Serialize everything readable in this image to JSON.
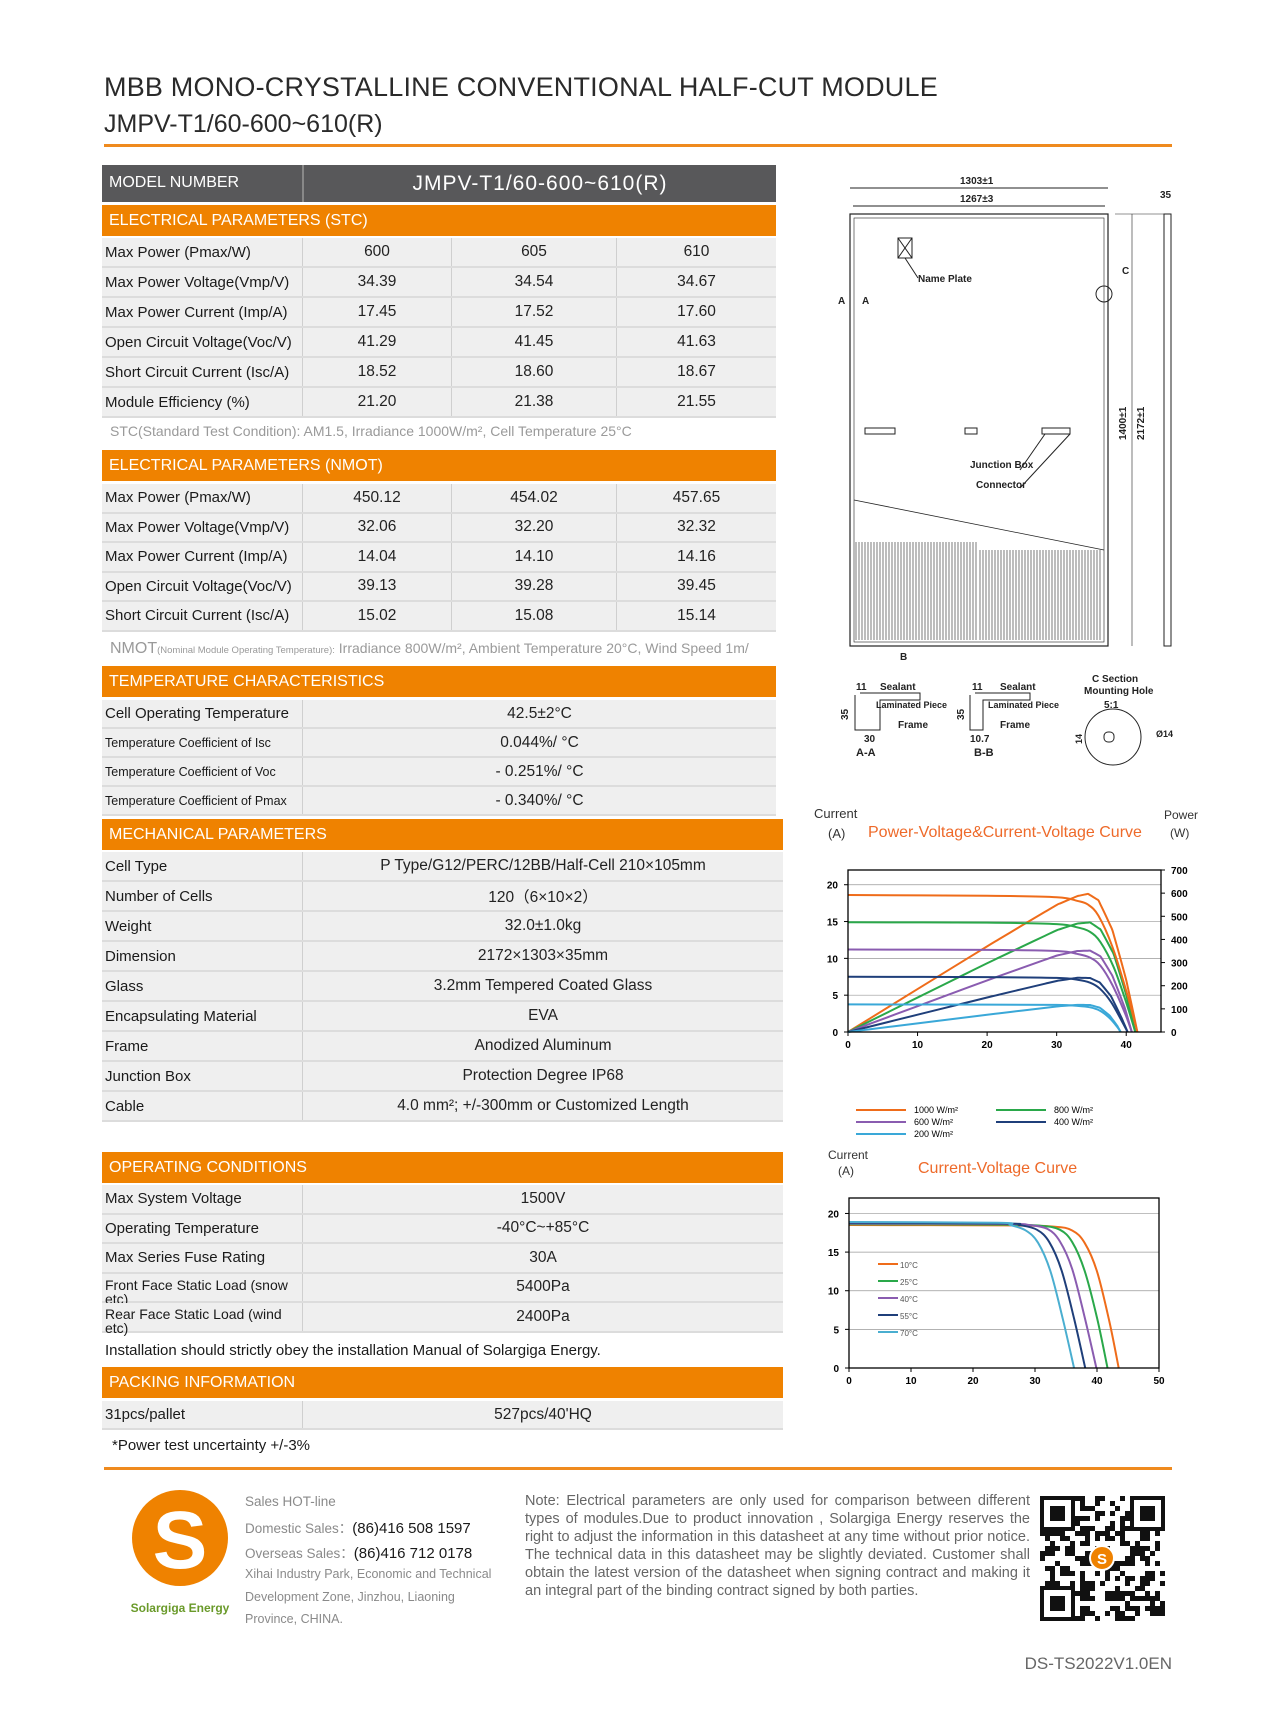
{
  "header": {
    "title": "MBB MONO-CRYSTALLINE CONVENTIONAL HALF-CUT MODULE",
    "subtitle": "JMPV-T1/60-600~610(R)"
  },
  "model": {
    "label": "MODEL NUMBER",
    "value": "JMPV-T1/60-600~610(R)"
  },
  "stc": {
    "header": "ELECTRICAL PARAMETERS  (STC)",
    "rows": [
      {
        "label": "Max Power (Pmax/W)",
        "values": [
          "600",
          "605",
          "610"
        ]
      },
      {
        "label": "Max Power Voltage(Vmp/V)",
        "values": [
          "34.39",
          "34.54",
          "34.67"
        ]
      },
      {
        "label": "Max Power Current (Imp/A)",
        "values": [
          "17.45",
          "17.52",
          "17.60"
        ]
      },
      {
        "label": "Open Circuit Voltage(Voc/V)",
        "values": [
          "41.29",
          "41.45",
          "41.63"
        ]
      },
      {
        "label": "Short Circuit Current (Isc/A)",
        "values": [
          "18.52",
          "18.60",
          "18.67"
        ]
      },
      {
        "label": "Module Efficiency (%)",
        "values": [
          "21.20",
          "21.38",
          "21.55"
        ]
      }
    ],
    "note": "STC(Standard Test Condition): AM1.5, Irradiance 1000W/m², Cell Temperature 25°C"
  },
  "nmot": {
    "header": "ELECTRICAL PARAMETERS  (NMOT)",
    "rows": [
      {
        "label": "Max Power (Pmax/W)",
        "values": [
          "450.12",
          "454.02",
          "457.65"
        ]
      },
      {
        "label": "Max Power Voltage(Vmp/V)",
        "values": [
          "32.06",
          "32.20",
          "32.32"
        ]
      },
      {
        "label": "Max Power Current (Imp/A)",
        "values": [
          "14.04",
          "14.10",
          "14.16"
        ]
      },
      {
        "label": "Open Circuit Voltage(Voc/V)",
        "values": [
          "39.13",
          "39.28",
          "39.45"
        ]
      },
      {
        "label": "Short Circuit Current (Isc/A)",
        "values": [
          "15.02",
          "15.08",
          "15.14"
        ]
      }
    ],
    "note_prefix": "NMOT",
    "note_small": "(Nominal Module Operating Temperature):",
    "note": " Irradiance 800W/m², Ambient Temperature 20°C, Wind Speed 1m/"
  },
  "temperature": {
    "header": "TEMPERATURE CHARACTERISTICS",
    "rows": [
      {
        "label": "Cell Operating Temperature",
        "value": "42.5±2°C"
      },
      {
        "label": "Temperature Coefficient of Isc",
        "value": "0.044%/ °C"
      },
      {
        "label": "Temperature Coefficient of Voc",
        "value": "- 0.251%/ °C"
      },
      {
        "label": "Temperature Coefficient of Pmax",
        "value": "- 0.340%/ °C"
      }
    ]
  },
  "mechanical": {
    "header": "MECHANICAL PARAMETERS",
    "rows": [
      {
        "label": "Cell Type",
        "value": "P Type/G12/PERC/12BB/Half-Cell  210×105mm"
      },
      {
        "label": "Number of Cells",
        "value": "120（6×10×2）"
      },
      {
        "label": "Weight",
        "value": "32.0±1.0kg"
      },
      {
        "label": "Dimension",
        "value": "2172×1303×35mm"
      },
      {
        "label": "Glass",
        "value": "3.2mm Tempered Coated Glass"
      },
      {
        "label": "Encapsulating Material",
        "value": "EVA"
      },
      {
        "label": "Frame",
        "value": "Anodized Aluminum"
      },
      {
        "label": "Junction Box",
        "value": "Protection Degree IP68"
      },
      {
        "label": "Cable",
        "value": "4.0 mm²; +/-300mm or Customized Length"
      }
    ]
  },
  "operating": {
    "header": "OPERATING CONDITIONS",
    "rows": [
      {
        "label": "Max System Voltage",
        "value": "1500V"
      },
      {
        "label": "Operating Temperature",
        "value": "-40°C~+85°C"
      },
      {
        "label": "Max Series Fuse Rating",
        "value": "30A"
      },
      {
        "label": "Front Face Static Load (snow etc)",
        "value": "5400Pa"
      },
      {
        "label": "Rear Face Static Load (wind etc)",
        "value": "2400Pa"
      }
    ],
    "note": "Installation should strictly obey the installation Manual of Solargiga Energy."
  },
  "packing": {
    "header": "PACKING INFORMATION",
    "rows": [
      {
        "label": "31pcs/pallet",
        "value": "527pcs/40'HQ"
      }
    ],
    "note": "*Power test uncertainty  +/-3%"
  },
  "drawing": {
    "dim_width": "1303±1",
    "dim_inner": "1267±3",
    "dim_thickness": "35",
    "name_plate": "Name Plate",
    "section_c": "C",
    "section_a": "A",
    "dim_1400": "1400±1",
    "dim_2172": "2172±1",
    "junction_box": "Junction Box",
    "connector": "Connector",
    "section_b": "B",
    "sealant": "Sealant",
    "laminated_piece": "Laminated Piece",
    "frame": "Frame",
    "dim_11": "11",
    "dim_35": "35",
    "dim_30": "30",
    "dim_10_7": "10.7",
    "aa": "A-A",
    "bb": "B-B",
    "c_section": "C Section",
    "mounting_hole": "Mounting Hole",
    "scale": "5:1",
    "dim_phi14": "Ø14",
    "dim_14": "14"
  },
  "chart_data": [
    {
      "type": "line",
      "title": "Power-Voltage&Current-Voltage Curve",
      "ylabel": "Current",
      "ylabel_unit": "(A)",
      "y2label": "Power",
      "y2label_unit": "(W)",
      "xlim": [
        0,
        45
      ],
      "ylim": [
        0,
        22
      ],
      "y2lim": [
        0,
        700
      ],
      "xticks": [
        "0",
        "10",
        "20",
        "30",
        "40"
      ],
      "yticks": [
        "0",
        "5",
        "10",
        "15",
        "20"
      ],
      "y2ticks": [
        "0",
        "100",
        "200",
        "300",
        "400",
        "500",
        "600",
        "700"
      ],
      "grid": true,
      "legend_position": "bottom",
      "series": [
        {
          "name": "1000 W/m²",
          "color": "#ef6c1a",
          "points": [
            [
              0,
              18.6
            ],
            [
              20,
              18.5
            ],
            [
              30,
              18.3
            ],
            [
              33,
              17.8
            ],
            [
              34.5,
              17.3
            ],
            [
              36,
              15.8
            ],
            [
              38,
              11.6
            ],
            [
              40,
              5.6
            ],
            [
              41.6,
              0
            ]
          ]
        },
        {
          "name": "800 W/m²",
          "color": "#2aa84a",
          "points": [
            [
              0,
              14.9
            ],
            [
              20,
              14.85
            ],
            [
              30,
              14.65
            ],
            [
              33,
              14.2
            ],
            [
              34.8,
              13.6
            ],
            [
              36.3,
              12.2
            ],
            [
              38.2,
              8.8
            ],
            [
              40,
              4
            ],
            [
              41.3,
              0
            ]
          ]
        },
        {
          "name": "600 W/m²",
          "color": "#8a5cb0",
          "points": [
            [
              0,
              11.2
            ],
            [
              20,
              11.15
            ],
            [
              30,
              11.0
            ],
            [
              33,
              10.6
            ],
            [
              34.8,
              10.1
            ],
            [
              36.3,
              9
            ],
            [
              38,
              6.4
            ],
            [
              39.8,
              2.6
            ],
            [
              40.8,
              0
            ]
          ]
        },
        {
          "name": "400 W/m²",
          "color": "#1f3f7a",
          "points": [
            [
              0,
              7.5
            ],
            [
              20,
              7.45
            ],
            [
              30,
              7.35
            ],
            [
              33,
              7.1
            ],
            [
              34.8,
              6.7
            ],
            [
              36.2,
              5.9
            ],
            [
              37.8,
              4.1
            ],
            [
              39.3,
              1.6
            ],
            [
              40.2,
              0
            ]
          ]
        },
        {
          "name": "200 W/m²",
          "color": "#3aa8d8",
          "points": [
            [
              0,
              3.75
            ],
            [
              20,
              3.72
            ],
            [
              30,
              3.68
            ],
            [
              33,
              3.55
            ],
            [
              34.8,
              3.35
            ],
            [
              36.2,
              2.9
            ],
            [
              37.6,
              1.9
            ],
            [
              38.7,
              0.7
            ],
            [
              39.2,
              0
            ]
          ]
        }
      ]
    },
    {
      "type": "line",
      "title": "Current-Voltage Curve",
      "ylabel": "Current",
      "ylabel_unit": "(A)",
      "xlim": [
        0,
        50
      ],
      "ylim": [
        0,
        22
      ],
      "xticks": [
        "0",
        "10",
        "20",
        "30",
        "40",
        "50"
      ],
      "yticks": [
        "0",
        "5",
        "10",
        "15",
        "20"
      ],
      "grid": true,
      "legend_position": "left",
      "series": [
        {
          "name": "10°C",
          "color": "#ef6c1a",
          "points": [
            [
              0,
              18.5
            ],
            [
              25,
              18.45
            ],
            [
              33,
              18.3
            ],
            [
              36,
              17.8
            ],
            [
              38,
              16.2
            ],
            [
              40,
              12.5
            ],
            [
              42,
              6
            ],
            [
              43.5,
              0
            ]
          ]
        },
        {
          "name": "25°C",
          "color": "#2aa84a",
          "points": [
            [
              0,
              18.6
            ],
            [
              25,
              18.55
            ],
            [
              31,
              18.4
            ],
            [
              34,
              17.9
            ],
            [
              36,
              16.3
            ],
            [
              38,
              12.6
            ],
            [
              40,
              6.5
            ],
            [
              41.7,
              0
            ]
          ]
        },
        {
          "name": "40°C",
          "color": "#8a5cb0",
          "points": [
            [
              0,
              18.7
            ],
            [
              25,
              18.65
            ],
            [
              29,
              18.5
            ],
            [
              32,
              18
            ],
            [
              34,
              16.4
            ],
            [
              36,
              12.8
            ],
            [
              38,
              6.6
            ],
            [
              39.9,
              0
            ]
          ]
        },
        {
          "name": "55°C",
          "color": "#1f3f7a",
          "points": [
            [
              0,
              18.8
            ],
            [
              25,
              18.7
            ],
            [
              27.5,
              18.5
            ],
            [
              30.3,
              17.9
            ],
            [
              32.3,
              16.3
            ],
            [
              34.3,
              12.6
            ],
            [
              36.3,
              6.4
            ],
            [
              38.1,
              0
            ]
          ]
        },
        {
          "name": "70°C",
          "color": "#4aaed0",
          "points": [
            [
              0,
              18.9
            ],
            [
              24,
              18.8
            ],
            [
              26,
              18.5
            ],
            [
              28.5,
              17.8
            ],
            [
              30.5,
              16.2
            ],
            [
              32.5,
              12.5
            ],
            [
              34.5,
              6.3
            ],
            [
              36.3,
              0
            ]
          ]
        }
      ]
    }
  ],
  "footer": {
    "logo_text": "Solargiga Energy",
    "hotline": "Sales HOT-line",
    "domestic_label": "Domestic Sales：",
    "domestic_phone": "(86)416 508 1597",
    "overseas_label": "Overseas Sales：",
    "overseas_phone": "(86)416 712 0178",
    "address_1": "Xihai Industry Park, Economic and Technical",
    "address_2": "Development Zone, Jinzhou, Liaoning",
    "address_3": "Province, CHINA.",
    "note": "Note:  Electrical parameters are only used for comparison between different types of modules.Due to product innovation , Solargiga Energy reserves the right to adjust the information in this datasheet at any time without prior notice. The technical data in this datasheet may be slightly deviated. Customer shall obtain the latest version of the datasheet when signing  contract  and  making it an integral part of the binding contract signed by both parties.",
    "doc_code": "DS-TS2022V1.0EN"
  },
  "colors": {
    "accent": "#ef8200",
    "model_bg": "#58585a",
    "logo_green": "#6a9a2a"
  }
}
